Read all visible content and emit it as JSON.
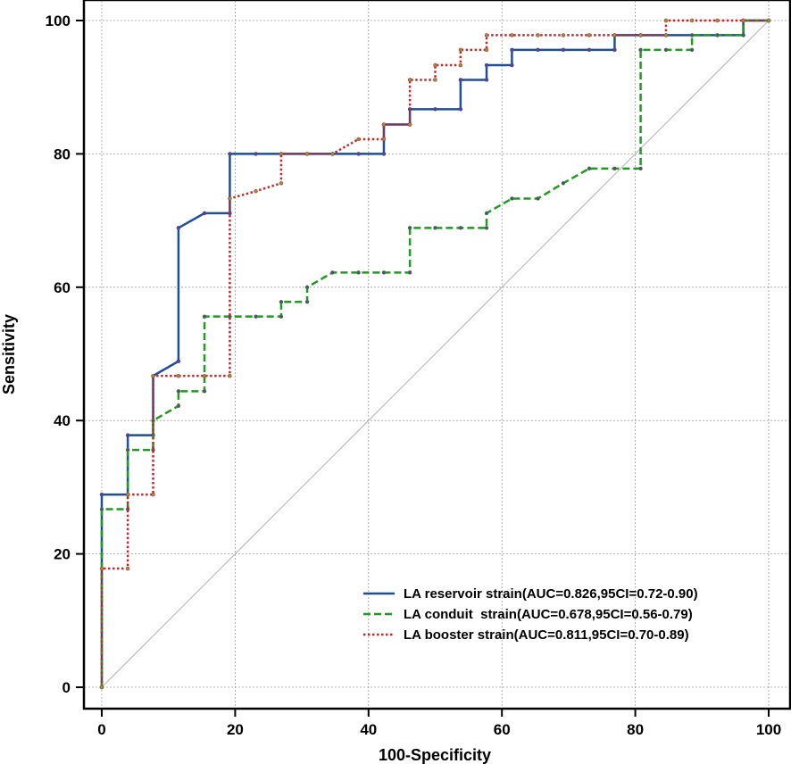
{
  "chart_data": {
    "type": "line",
    "xlabel": "100-Specificity",
    "ylabel": "Sensitivity",
    "xlim": [
      0,
      100
    ],
    "ylim": [
      0,
      100
    ],
    "xticks": [
      0,
      20,
      40,
      60,
      80,
      100
    ],
    "yticks": [
      0,
      20,
      40,
      60,
      80,
      100
    ],
    "grid": true,
    "legend_position": "bottom-right",
    "diagonal": {
      "x": [
        0,
        100
      ],
      "y": [
        0,
        100
      ],
      "color": "#b4b4b4"
    },
    "series": [
      {
        "name": "LA reservoir strain(AUC=0.826,95CI=0.72-0.90)",
        "color": "#1f4e99",
        "marker_color": "#6b3d8c",
        "dash": "solid",
        "points": [
          [
            0,
            0
          ],
          [
            0,
            28.9
          ],
          [
            3.9,
            28.9
          ],
          [
            3.9,
            37.8
          ],
          [
            7.7,
            37.8
          ],
          [
            7.7,
            46.7
          ],
          [
            11.5,
            48.9
          ],
          [
            11.5,
            68.9
          ],
          [
            15.4,
            71.1
          ],
          [
            19.2,
            71.1
          ],
          [
            19.2,
            80
          ],
          [
            23.1,
            80
          ],
          [
            26.9,
            80
          ],
          [
            30.8,
            80
          ],
          [
            34.6,
            80
          ],
          [
            38.5,
            80
          ],
          [
            42.3,
            80
          ],
          [
            42.3,
            84.4
          ],
          [
            46.2,
            84.4
          ],
          [
            46.2,
            86.7
          ],
          [
            50,
            86.7
          ],
          [
            53.8,
            86.7
          ],
          [
            53.8,
            91.1
          ],
          [
            57.7,
            91.1
          ],
          [
            57.7,
            93.3
          ],
          [
            61.5,
            93.3
          ],
          [
            61.5,
            95.6
          ],
          [
            65.4,
            95.6
          ],
          [
            69.2,
            95.6
          ],
          [
            73.1,
            95.6
          ],
          [
            76.9,
            95.6
          ],
          [
            76.9,
            97.8
          ],
          [
            80.8,
            97.8
          ],
          [
            84.6,
            97.8
          ],
          [
            88.5,
            97.8
          ],
          [
            92.3,
            97.8
          ],
          [
            96.2,
            97.8
          ],
          [
            96.2,
            100
          ],
          [
            100,
            100
          ]
        ]
      },
      {
        "name": "LA conduit  strain(AUC=0.678,95CI=0.56-0.79)",
        "color": "#1f9b1f",
        "marker_color": "#6b3d8c",
        "dash": "long",
        "points": [
          [
            0,
            0
          ],
          [
            0,
            26.7
          ],
          [
            3.9,
            26.7
          ],
          [
            3.9,
            35.6
          ],
          [
            7.7,
            35.6
          ],
          [
            7.7,
            40
          ],
          [
            11.5,
            42.2
          ],
          [
            11.5,
            44.4
          ],
          [
            15.4,
            44.4
          ],
          [
            15.4,
            55.6
          ],
          [
            19.2,
            55.6
          ],
          [
            23.1,
            55.6
          ],
          [
            26.9,
            55.6
          ],
          [
            26.9,
            57.8
          ],
          [
            30.8,
            57.8
          ],
          [
            30.8,
            60
          ],
          [
            34.6,
            62.2
          ],
          [
            38.5,
            62.2
          ],
          [
            42.3,
            62.2
          ],
          [
            46.2,
            62.2
          ],
          [
            46.2,
            68.9
          ],
          [
            50,
            68.9
          ],
          [
            53.8,
            68.9
          ],
          [
            57.7,
            68.9
          ],
          [
            57.7,
            71.1
          ],
          [
            61.5,
            73.3
          ],
          [
            65.4,
            73.3
          ],
          [
            69.2,
            75.6
          ],
          [
            73.1,
            77.8
          ],
          [
            76.9,
            77.8
          ],
          [
            80.8,
            77.8
          ],
          [
            80.8,
            95.6
          ],
          [
            84.6,
            95.6
          ],
          [
            88.5,
            95.6
          ],
          [
            88.5,
            97.8
          ],
          [
            92.3,
            97.8
          ],
          [
            96.2,
            97.8
          ],
          [
            96.2,
            100
          ],
          [
            100,
            100
          ]
        ]
      },
      {
        "name": "LA booster strain(AUC=0.811,95CI=0.70-0.89)",
        "color": "#c0282d",
        "marker_color": "#8c9a3c",
        "dash": "dot",
        "points": [
          [
            0,
            0
          ],
          [
            0,
            17.8
          ],
          [
            3.9,
            17.8
          ],
          [
            3.9,
            28.9
          ],
          [
            7.7,
            28.9
          ],
          [
            7.7,
            46.7
          ],
          [
            11.5,
            46.7
          ],
          [
            15.4,
            46.7
          ],
          [
            19.2,
            46.7
          ],
          [
            19.2,
            73.3
          ],
          [
            23.1,
            74.4
          ],
          [
            26.9,
            75.6
          ],
          [
            26.9,
            80
          ],
          [
            30.8,
            80
          ],
          [
            34.6,
            80
          ],
          [
            38.5,
            82.2
          ],
          [
            42.3,
            82.2
          ],
          [
            42.3,
            84.4
          ],
          [
            46.2,
            84.4
          ],
          [
            46.2,
            91.1
          ],
          [
            50,
            91.1
          ],
          [
            50,
            93.3
          ],
          [
            53.8,
            93.3
          ],
          [
            53.8,
            95.6
          ],
          [
            57.7,
            95.6
          ],
          [
            57.7,
            97.8
          ],
          [
            61.5,
            97.8
          ],
          [
            65.4,
            97.8
          ],
          [
            69.2,
            97.8
          ],
          [
            73.1,
            97.8
          ],
          [
            76.9,
            97.8
          ],
          [
            80.8,
            97.8
          ],
          [
            84.6,
            97.8
          ],
          [
            84.6,
            100
          ],
          [
            88.5,
            100
          ],
          [
            92.3,
            100
          ],
          [
            96.2,
            100
          ],
          [
            100,
            100
          ]
        ]
      }
    ]
  }
}
